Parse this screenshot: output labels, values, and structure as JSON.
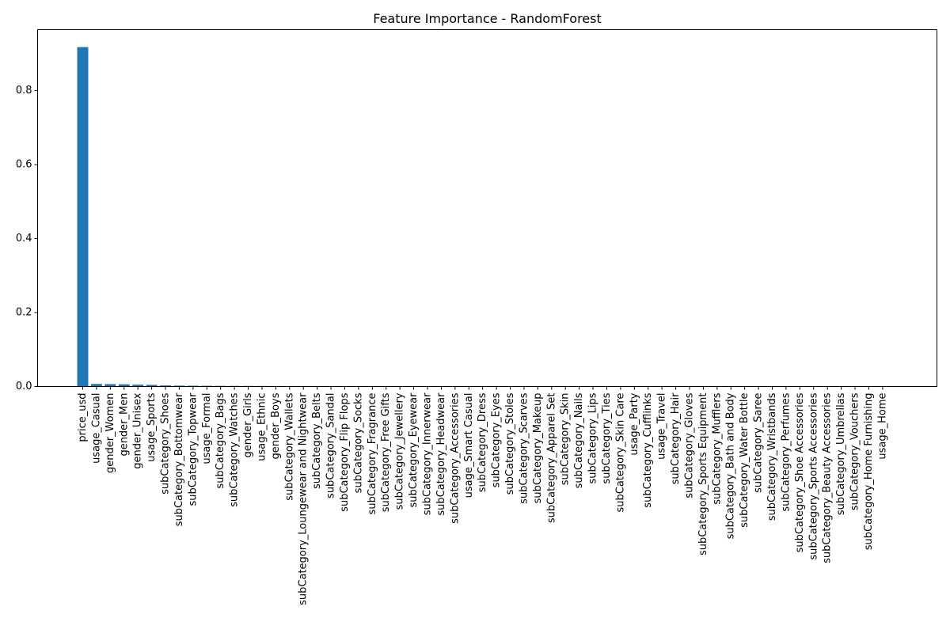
{
  "chart_data": {
    "type": "bar",
    "title": "Feature Importance - RandomForest",
    "xlabel": "",
    "ylabel": "",
    "ylim": [
      0,
      0.965
    ],
    "yticks": [
      0.0,
      0.2,
      0.4,
      0.6,
      0.8
    ],
    "ytick_labels": [
      "0.0",
      "0.2",
      "0.4",
      "0.6",
      "0.8"
    ],
    "bar_color": "#1f77b4",
    "grid": false,
    "categories": [
      "price_usd",
      "usage_Casual",
      "gender_Women",
      "gender_Men",
      "gender_Unisex",
      "usage_Sports",
      "subCategory_Shoes",
      "subCategory_Bottomwear",
      "subCategory_Topwear",
      "usage_Formal",
      "subCategory_Bags",
      "subCategory_Watches",
      "gender_Girls",
      "usage_Ethnic",
      "gender_Boys",
      "subCategory_Wallets",
      "subCategory_Loungewear and Nightwear",
      "subCategory_Belts",
      "subCategory_Sandal",
      "subCategory_Flip Flops",
      "subCategory_Socks",
      "subCategory_Fragrance",
      "subCategory_Free Gifts",
      "subCategory_Jewellery",
      "subCategory_Eyewear",
      "subCategory_Innerwear",
      "subCategory_Headwear",
      "subCategory_Accessories",
      "usage_Smart Casual",
      "subCategory_Dress",
      "subCategory_Eyes",
      "subCategory_Stoles",
      "subCategory_Scarves",
      "subCategory_Makeup",
      "subCategory_Apparel Set",
      "subCategory_Skin",
      "subCategory_Nails",
      "subCategory_Lips",
      "subCategory_Ties",
      "subCategory_Skin Care",
      "usage_Party",
      "subCategory_Cufflinks",
      "usage_Travel",
      "subCategory_Hair",
      "subCategory_Gloves",
      "subCategory_Sports Equipment",
      "subCategory_Mufflers",
      "subCategory_Bath and Body",
      "subCategory_Water Bottle",
      "subCategory_Saree",
      "subCategory_Wristbands",
      "subCategory_Perfumes",
      "subCategory_Shoe Accessories",
      "subCategory_Sports Accessories",
      "subCategory_Beauty Accessories",
      "subCategory_Umbrellas",
      "subCategory_Vouchers",
      "subCategory_Home Furnishing",
      "usage_Home"
    ],
    "values": [
      0.918,
      0.007,
      0.0065,
      0.006,
      0.005,
      0.0045,
      0.003,
      0.0025,
      0.0022,
      0.002,
      0.0018,
      0.0017,
      0.0016,
      0.0015,
      0.0014,
      0.0013,
      0.0012,
      0.0012,
      0.0011,
      0.0011,
      0.001,
      0.001,
      0.0009,
      0.0009,
      0.0008,
      0.0008,
      0.0008,
      0.0007,
      0.0003,
      0.0002,
      0.0002,
      0.0001,
      0.0001,
      0.0001,
      0.0001,
      0.0001,
      0.0001,
      0.0001,
      0.0001,
      0.0001,
      0.0001,
      0.0,
      0.0,
      0.0,
      0.0,
      0.0,
      0.0,
      0.0,
      0.0,
      0.0,
      0.0,
      0.0,
      0.0,
      0.0,
      0.0,
      0.0,
      0.0,
      0.0,
      0.0
    ]
  }
}
